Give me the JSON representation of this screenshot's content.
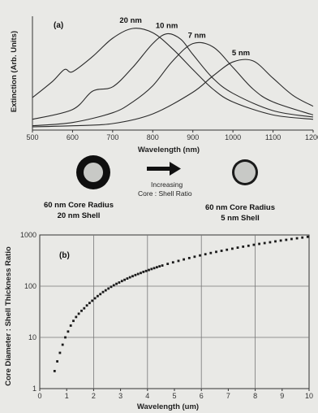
{
  "chart_data": [
    {
      "type": "line",
      "panel_label": "(a)",
      "xlabel": "Wavelength (nm)",
      "ylabel": "Extinction (Arb. Units)",
      "xlim": [
        500,
        1200
      ],
      "xticks": [
        500,
        600,
        700,
        800,
        900,
        1000,
        1100,
        1200
      ],
      "y_tick_labels": false,
      "grid": false,
      "series": [
        {
          "name": "20 nm",
          "peak": 745,
          "x": [
            500,
            550,
            580,
            600,
            650,
            700,
            750,
            800,
            850,
            900,
            950,
            1000,
            1100,
            1200
          ],
          "y": [
            0.3,
            0.45,
            0.56,
            0.54,
            0.68,
            0.85,
            0.94,
            0.9,
            0.75,
            0.56,
            0.38,
            0.26,
            0.14,
            0.1
          ]
        },
        {
          "name": "10 nm",
          "peak": 835,
          "x": [
            500,
            600,
            650,
            700,
            750,
            800,
            835,
            870,
            900,
            950,
            1000,
            1100,
            1200
          ],
          "y": [
            0.1,
            0.19,
            0.36,
            0.4,
            0.58,
            0.8,
            0.89,
            0.84,
            0.7,
            0.48,
            0.34,
            0.18,
            0.12
          ]
        },
        {
          "name": "7 nm",
          "peak": 910,
          "x": [
            500,
            600,
            700,
            750,
            800,
            850,
            900,
            950,
            1000,
            1050,
            1100,
            1200
          ],
          "y": [
            0.04,
            0.07,
            0.16,
            0.26,
            0.41,
            0.64,
            0.8,
            0.77,
            0.58,
            0.38,
            0.26,
            0.14
          ]
        },
        {
          "name": "5 nm",
          "peak": 1020,
          "x": [
            500,
            600,
            700,
            800,
            900,
            950,
            1000,
            1050,
            1100,
            1150,
            1200
          ],
          "y": [
            0.03,
            0.04,
            0.06,
            0.15,
            0.35,
            0.5,
            0.63,
            0.64,
            0.48,
            0.32,
            0.22
          ]
        }
      ]
    },
    {
      "type": "scatter",
      "panel_label": "(b)",
      "xlabel": "Wavelength (um)",
      "ylabel": "Core Diameter : Shell Thickness Ratio",
      "xlim": [
        0,
        10
      ],
      "ylim": [
        1,
        1000
      ],
      "yscale": "log",
      "xticks": [
        0,
        1,
        2,
        3,
        4,
        5,
        6,
        7,
        8,
        9,
        10
      ],
      "yticks": [
        1,
        10,
        100,
        1000
      ],
      "grid": true,
      "x": [
        0.55,
        0.65,
        0.75,
        0.85,
        0.95,
        1.05,
        1.15,
        1.25,
        1.35,
        1.45,
        1.55,
        1.65,
        1.75,
        1.85,
        1.95,
        2.05,
        2.15,
        2.25,
        2.35,
        2.45,
        2.55,
        2.65,
        2.75,
        2.85,
        2.95,
        3.05,
        3.15,
        3.25,
        3.35,
        3.45,
        3.55,
        3.65,
        3.75,
        3.85,
        3.95,
        4.05,
        4.15,
        4.25,
        4.35,
        4.45,
        4.55,
        4.75,
        4.95,
        5.15,
        5.35,
        5.55,
        5.75,
        5.95,
        6.15,
        6.35,
        6.55,
        6.75,
        6.95,
        7.15,
        7.35,
        7.55,
        7.75,
        7.95,
        8.15,
        8.35,
        8.55,
        8.75,
        8.95,
        9.15,
        9.35,
        9.55,
        9.75,
        9.95
      ],
      "y": [
        2.2,
        3.4,
        5.0,
        7.2,
        10,
        13,
        17,
        21,
        25,
        29,
        33,
        37,
        42,
        47,
        52,
        58,
        64,
        70,
        77,
        83,
        90,
        97,
        104,
        111,
        118,
        126,
        133,
        141,
        149,
        157,
        165,
        173,
        181,
        190,
        198,
        207,
        216,
        225,
        234,
        244,
        253,
        272,
        292,
        312,
        333,
        354,
        376,
        398,
        421,
        444,
        467,
        491,
        515,
        540,
        565,
        590,
        616,
        642,
        668,
        694,
        721,
        748,
        776,
        804,
        832,
        860,
        889,
        918
      ]
    }
  ],
  "diagram": {
    "left_caption_line1": "60 nm Core Radius",
    "left_caption_line2": "20 nm Shell",
    "right_caption_line1": "60 nm Core Radius",
    "right_caption_line2": "5 nm Shell",
    "arrow_text_line1": "Increasing",
    "arrow_text_line2": "Core : Shell Ratio"
  }
}
